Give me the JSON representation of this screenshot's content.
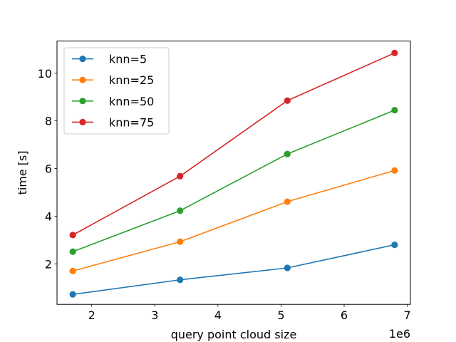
{
  "chart_data": {
    "type": "line",
    "xlabel": "query point cloud size",
    "ylabel": "time [s]",
    "x_offset_label": "1e6",
    "x": [
      1.7,
      3.4,
      5.1,
      6.8
    ],
    "xlim": [
      1.45,
      7.05
    ],
    "ylim": [
      0.3,
      11.35
    ],
    "xticks": [
      2,
      3,
      4,
      5,
      6,
      7
    ],
    "yticks": [
      2,
      4,
      6,
      8,
      10
    ],
    "legend_position": "upper-left",
    "series": [
      {
        "name": "knn=5",
        "color": "#1f77b4",
        "values": [
          0.72,
          1.33,
          1.83,
          2.8
        ]
      },
      {
        "name": "knn=25",
        "color": "#ff7f0e",
        "values": [
          1.7,
          2.93,
          4.61,
          5.92
        ]
      },
      {
        "name": "knn=50",
        "color": "#2ca02c",
        "values": [
          2.51,
          4.23,
          6.61,
          8.45
        ]
      },
      {
        "name": "knn=75",
        "color": "#d62728",
        "values": [
          3.21,
          5.68,
          8.85,
          10.85
        ]
      }
    ]
  }
}
